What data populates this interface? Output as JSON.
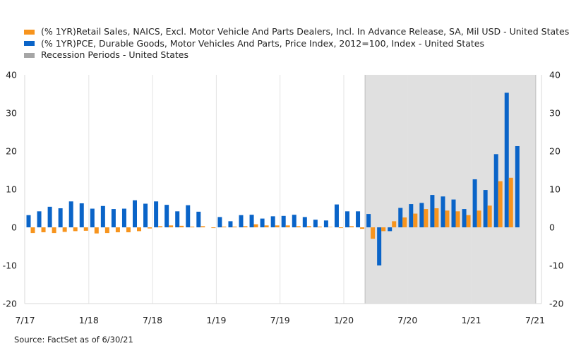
{
  "legend": {
    "items": [
      {
        "label": "(% 1YR)Retail Sales, NAICS, Excl. Motor Vehicle And Parts Dealers, Incl. In Advance Release, SA, Mil USD - United States",
        "color": "#F7941D"
      },
      {
        "label": "(% 1YR)PCE, Durable Goods, Motor Vehicles And Parts, Price Index, 2012=100, Index - United States",
        "color": "#0A64C8"
      },
      {
        "label": "Recession Periods - United States",
        "color": "#A6A6A6"
      }
    ]
  },
  "source": "Source: FactSet as of 6/30/21",
  "chart_data": {
    "type": "bar",
    "x_tick_labels": [
      "7/17",
      "1/18",
      "7/18",
      "1/19",
      "7/19",
      "1/20",
      "7/20",
      "1/21",
      "7/21"
    ],
    "y_ticks": [
      -20,
      -10,
      0,
      10,
      20,
      30,
      40
    ],
    "ylim": [
      -20,
      40
    ],
    "grid": "vertical",
    "y_axis_labels": "both",
    "legend_position": "top-left",
    "recession_shading": {
      "start": "2020-03",
      "end": "2021-06",
      "color": "#E0E0E0"
    },
    "categories": [
      "2017-07",
      "2017-08",
      "2017-09",
      "2017-10",
      "2017-11",
      "2017-12",
      "2018-01",
      "2018-02",
      "2018-03",
      "2018-04",
      "2018-05",
      "2018-06",
      "2018-07",
      "2018-08",
      "2018-09",
      "2018-10",
      "2018-11",
      "2018-12",
      "2019-01",
      "2019-02",
      "2019-03",
      "2019-04",
      "2019-05",
      "2019-06",
      "2019-07",
      "2019-08",
      "2019-09",
      "2019-10",
      "2019-11",
      "2019-12",
      "2020-01",
      "2020-02",
      "2020-03",
      "2020-04",
      "2020-05",
      "2020-06",
      "2020-07",
      "2020-08",
      "2020-09",
      "2020-10",
      "2020-11",
      "2020-12",
      "2021-01",
      "2021-02",
      "2021-03",
      "2021-04",
      "2021-05"
    ],
    "series": [
      {
        "name": "(% 1YR)PCE, Durable Goods, Motor Vehicles And Parts, Price Index, 2012=100, Index - United States",
        "color": "#0A64C8",
        "values": [
          3.2,
          4.2,
          5.4,
          5.0,
          6.8,
          6.3,
          4.9,
          5.6,
          4.8,
          4.9,
          7.1,
          6.2,
          6.8,
          5.9,
          4.2,
          5.8,
          4.1,
          0.0,
          2.7,
          1.6,
          3.2,
          3.3,
          2.3,
          2.9,
          3.0,
          3.3,
          2.7,
          2.0,
          1.8,
          6.0,
          4.2,
          4.2,
          3.5,
          -10.0,
          -1.0,
          5.1,
          6.1,
          6.4,
          8.5,
          8.1,
          7.3,
          4.8,
          12.6,
          9.8,
          19.2,
          35.3,
          21.3
        ]
      },
      {
        "name": "(% 1YR)Retail Sales, NAICS, Excl. Motor Vehicle And Parts Dealers, Incl. In Advance Release, SA, Mil USD - United States",
        "color": "#F7941D",
        "values": [
          -1.5,
          -1.3,
          -1.5,
          -1.2,
          -1.0,
          -0.9,
          -1.6,
          -1.5,
          -1.3,
          -1.3,
          -1.0,
          -0.3,
          0.3,
          0.5,
          0.4,
          0.2,
          0.3,
          -0.2,
          0.2,
          0.2,
          0.3,
          0.8,
          0.5,
          0.5,
          0.5,
          0.3,
          0.3,
          0.2,
          0.1,
          -0.2,
          0.3,
          -0.4,
          -3.0,
          -1.0,
          1.6,
          2.6,
          3.6,
          4.8,
          5.0,
          4.4,
          4.2,
          3.2,
          4.4,
          5.7,
          12.1,
          13.0,
          0.0
        ]
      }
    ]
  }
}
